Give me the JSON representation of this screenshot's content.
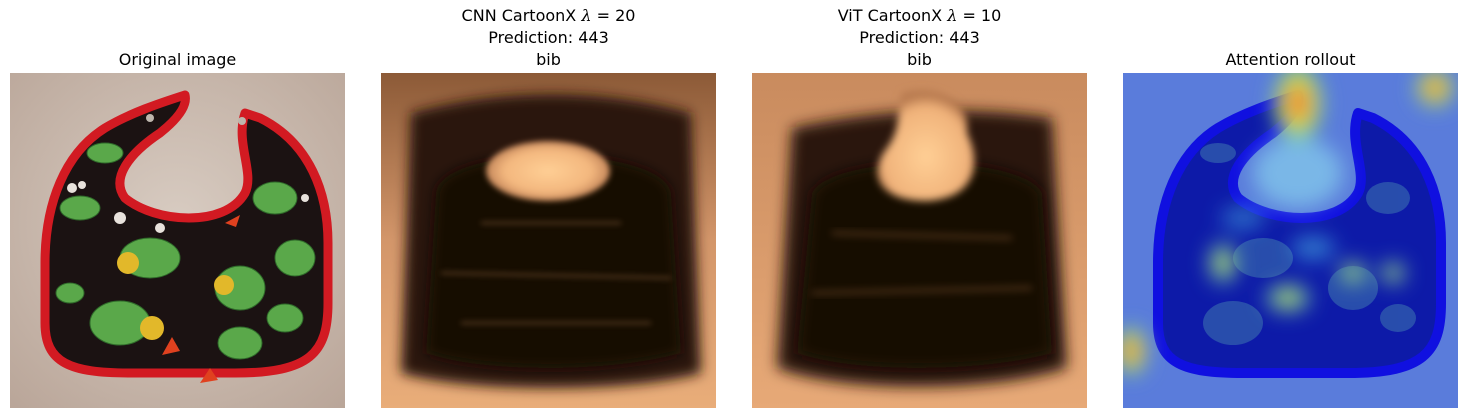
{
  "panels": [
    {
      "title_lines": [
        "Original image"
      ]
    },
    {
      "title_model": "CNN CartoonX",
      "title_lambda_symbol": "λ",
      "title_lambda_value": "= 20",
      "title_lines": [
        "Prediction: 443",
        "bib"
      ]
    },
    {
      "title_model": "ViT CartoonX",
      "title_lambda_symbol": "λ",
      "title_lambda_value": "= 10",
      "title_lines": [
        "Prediction: 443",
        "bib"
      ]
    },
    {
      "title_lines": [
        "Attention rollout"
      ]
    }
  ],
  "colors": {
    "background_wall": "#c8b8aa",
    "bib_trim": "#d21a22",
    "bib_fabric": "#1b1212",
    "dragon_green": "#5aa84a",
    "copper_light": "#f3b77e",
    "copper_dark": "#120904",
    "jet_blue": "#1010e0",
    "jet_red": "#e8302c"
  },
  "icons": [
    "bib-image",
    "cartoonx-mask-image",
    "attention-heatmap-image"
  ]
}
